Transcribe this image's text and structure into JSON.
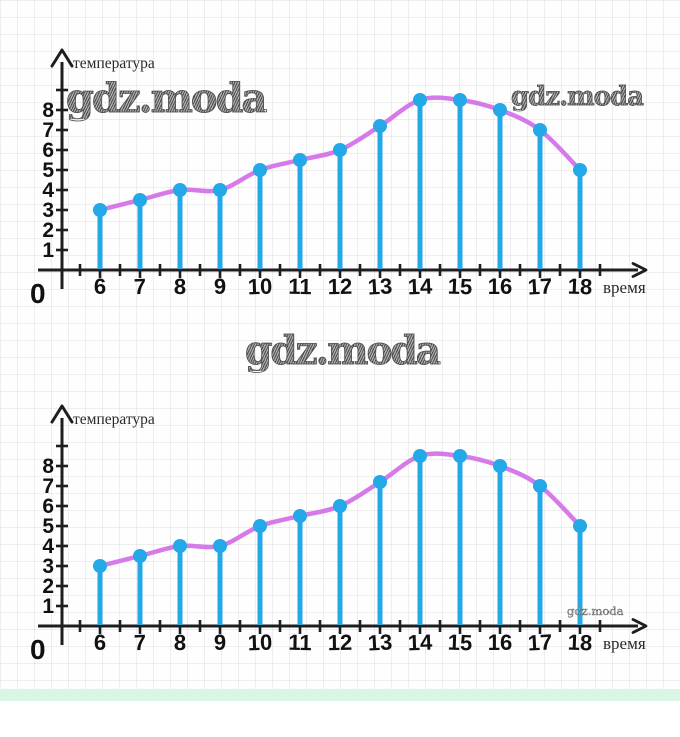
{
  "page": {
    "paper_grid_color": "#e0e0e0",
    "green_strip_color": "#d9f6e5"
  },
  "watermarks": {
    "top_left": "gdz.moda",
    "top_right": "gdz.moda",
    "middle": "gdz.moda",
    "bottom_small": "gdz.moda"
  },
  "chart_data": [
    {
      "type": "line",
      "title": "",
      "xlabel": "время",
      "ylabel": "температура",
      "origin_label": "0",
      "x": [
        6,
        7,
        8,
        9,
        10,
        11,
        12,
        13,
        14,
        15,
        16,
        17,
        18
      ],
      "values": [
        3,
        3.5,
        4,
        4,
        5,
        5.5,
        6,
        7.2,
        8.5,
        8.5,
        8,
        7,
        5
      ],
      "x_tick_labels": [
        "6",
        "7",
        "8",
        "9",
        "10",
        "11",
        "12",
        "13",
        "14",
        "15",
        "16",
        "17",
        "18"
      ],
      "y_tick_labels": [
        "1",
        "2",
        "3",
        "4",
        "5",
        "6",
        "7",
        "8"
      ],
      "xlim": [
        5,
        19.5
      ],
      "ylim": [
        0,
        10
      ],
      "grid": false,
      "legend": null,
      "colors": {
        "stem": "#23a8e8",
        "point": "#23a8e8",
        "line": "#d77ae9",
        "axis": "#1e1e1e",
        "label": "#111111"
      }
    },
    {
      "type": "line",
      "title": "",
      "xlabel": "время",
      "ylabel": "температура",
      "origin_label": "0",
      "x": [
        6,
        7,
        8,
        9,
        10,
        11,
        12,
        13,
        14,
        15,
        16,
        17,
        18
      ],
      "values": [
        3,
        3.5,
        4,
        4,
        5,
        5.5,
        6,
        7.2,
        8.5,
        8.5,
        8,
        7,
        5
      ],
      "x_tick_labels": [
        "6",
        "7",
        "8",
        "9",
        "10",
        "11",
        "12",
        "13",
        "14",
        "15",
        "16",
        "17",
        "18"
      ],
      "y_tick_labels": [
        "1",
        "2",
        "3",
        "4",
        "5",
        "6",
        "7",
        "8"
      ],
      "xlim": [
        5,
        19.5
      ],
      "ylim": [
        0,
        10
      ],
      "grid": false,
      "legend": null,
      "colors": {
        "stem": "#23a8e8",
        "point": "#23a8e8",
        "line": "#d77ae9",
        "axis": "#1e1e1e",
        "label": "#111111"
      }
    }
  ]
}
